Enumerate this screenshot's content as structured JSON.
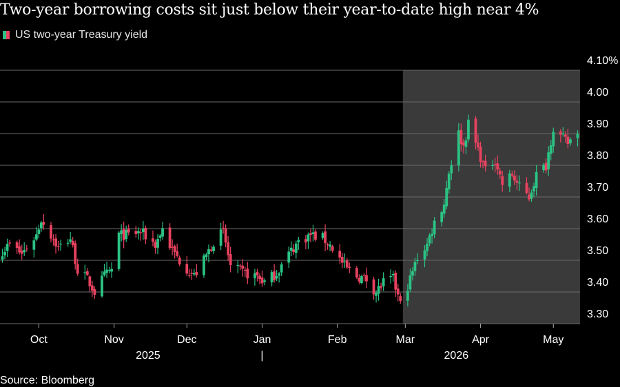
{
  "title": "Two-year borrowing costs sit just below their year-to-date high near 4%",
  "source": "Source: Bloomberg",
  "colors": {
    "background": "#000000",
    "up": "#2bc384",
    "down": "#e8425f",
    "grid": "#6b6b6b",
    "shade": "#3a3a3a"
  },
  "chart_data": {
    "type": "candlestick",
    "legend": [
      "US two-year Treasury yield"
    ],
    "legend_position": "top-left",
    "grid": true,
    "y_axis": {
      "position": "right",
      "ylim": [
        3.3,
        4.1
      ],
      "ticks": [
        "4.10%",
        "4.00",
        "3.90",
        "3.80",
        "3.70",
        "3.60",
        "3.50",
        "3.40",
        "3.30"
      ]
    },
    "x_axis": {
      "range": [
        "2025-09-15",
        "2026-05-12"
      ],
      "month_ticks": [
        {
          "label": "Oct",
          "date": "2025-10-01"
        },
        {
          "label": "Nov",
          "date": "2025-11-01"
        },
        {
          "label": "Dec",
          "date": "2025-12-01"
        },
        {
          "label": "Jan",
          "date": "2026-01-01"
        },
        {
          "label": "Feb",
          "date": "2026-02-01"
        },
        {
          "label": "Mar",
          "date": "2026-03-01"
        },
        {
          "label": "Apr",
          "date": "2026-04-01"
        },
        {
          "label": "May",
          "date": "2026-05-01"
        }
      ],
      "year_labels": [
        {
          "label": "2025",
          "date": "2025-11-15"
        },
        {
          "label": "2026",
          "date": "2026-03-22"
        }
      ],
      "year_separator": {
        "label": "|",
        "date": "2026-01-01"
      }
    },
    "highlight_range": [
      "2026-02-28",
      "2026-05-12"
    ],
    "anchors": [
      [
        "2025-09-16",
        3.53
      ],
      [
        "2025-09-19",
        3.55
      ],
      [
        "2025-09-24",
        3.52
      ],
      [
        "2025-09-30",
        3.58
      ],
      [
        "2025-10-02",
        3.63
      ],
      [
        "2025-10-06",
        3.58
      ],
      [
        "2025-10-09",
        3.54
      ],
      [
        "2025-10-14",
        3.57
      ],
      [
        "2025-10-17",
        3.47
      ],
      [
        "2025-10-21",
        3.44
      ],
      [
        "2025-10-24",
        3.4
      ],
      [
        "2025-10-28",
        3.45
      ],
      [
        "2025-10-31",
        3.47
      ],
      [
        "2025-11-03",
        3.58
      ],
      [
        "2025-11-07",
        3.58
      ],
      [
        "2025-11-12",
        3.59
      ],
      [
        "2025-11-18",
        3.55
      ],
      [
        "2025-11-21",
        3.6
      ],
      [
        "2025-11-25",
        3.53
      ],
      [
        "2025-11-28",
        3.5
      ],
      [
        "2025-12-04",
        3.45
      ],
      [
        "2025-12-08",
        3.5
      ],
      [
        "2025-12-12",
        3.56
      ],
      [
        "2025-12-16",
        3.59
      ],
      [
        "2025-12-19",
        3.48
      ],
      [
        "2025-12-24",
        3.46
      ],
      [
        "2025-12-30",
        3.45
      ],
      [
        "2026-01-02",
        3.43
      ],
      [
        "2026-01-07",
        3.46
      ],
      [
        "2026-01-12",
        3.52
      ],
      [
        "2026-01-16",
        3.56
      ],
      [
        "2026-01-21",
        3.58
      ],
      [
        "2026-01-26",
        3.57
      ],
      [
        "2026-01-30",
        3.54
      ],
      [
        "2026-02-04",
        3.48
      ],
      [
        "2026-02-09",
        3.45
      ],
      [
        "2026-02-13",
        3.44
      ],
      [
        "2026-02-17",
        3.4
      ],
      [
        "2026-02-20",
        3.43
      ],
      [
        "2026-02-24",
        3.44
      ],
      [
        "2026-02-27",
        3.36
      ],
      [
        "2026-03-03",
        3.44
      ],
      [
        "2026-03-06",
        3.51
      ],
      [
        "2026-03-10",
        3.55
      ],
      [
        "2026-03-13",
        3.62
      ],
      [
        "2026-03-17",
        3.68
      ],
      [
        "2026-03-19",
        3.78
      ],
      [
        "2026-03-23",
        3.9
      ],
      [
        "2026-03-25",
        3.86
      ],
      [
        "2026-03-27",
        3.93
      ],
      [
        "2026-03-31",
        3.85
      ],
      [
        "2026-04-03",
        3.78
      ],
      [
        "2026-04-07",
        3.82
      ],
      [
        "2026-04-10",
        3.74
      ],
      [
        "2026-04-14",
        3.77
      ],
      [
        "2026-04-17",
        3.73
      ],
      [
        "2026-04-21",
        3.7
      ],
      [
        "2026-04-24",
        3.77
      ],
      [
        "2026-04-28",
        3.8
      ],
      [
        "2026-05-01",
        3.92
      ],
      [
        "2026-05-04",
        3.89
      ],
      [
        "2026-05-07",
        3.87
      ],
      [
        "2026-05-11",
        3.91
      ]
    ]
  }
}
